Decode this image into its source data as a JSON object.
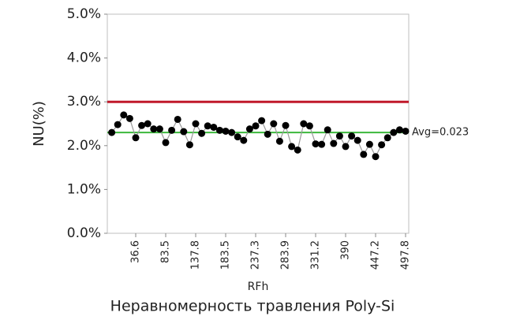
{
  "chart_data": {
    "type": "line",
    "caption": "Неравномерность травления Poly-Si",
    "x_label": "RFh",
    "y_label": "NU(%)",
    "categories": [
      null,
      null,
      null,
      null,
      "36.6",
      null,
      null,
      null,
      null,
      "83.5",
      null,
      null,
      null,
      null,
      "137.8",
      null,
      null,
      null,
      null,
      "183.5",
      null,
      null,
      null,
      null,
      "237.3",
      null,
      null,
      null,
      null,
      "283.9",
      null,
      null,
      null,
      null,
      "331.2",
      null,
      null,
      null,
      null,
      "390",
      null,
      null,
      null,
      null,
      "447.2",
      null,
      null,
      null,
      null,
      "497.8"
    ],
    "series": [
      {
        "name": "NU",
        "color": "#000000",
        "line_color": "#9a9a9a",
        "values": [
          2.3,
          2.48,
          2.7,
          2.62,
          2.18,
          2.46,
          2.5,
          2.38,
          2.38,
          2.07,
          2.35,
          2.6,
          2.32,
          2.02,
          2.5,
          2.28,
          2.45,
          2.42,
          2.35,
          2.33,
          2.3,
          2.2,
          2.12,
          2.38,
          2.45,
          2.57,
          2.26,
          2.5,
          2.1,
          2.46,
          1.98,
          1.9,
          2.5,
          2.45,
          2.04,
          2.03,
          2.36,
          2.05,
          2.22,
          1.98,
          2.22,
          2.12,
          1.8,
          2.03,
          1.75,
          2.02,
          2.18,
          2.3,
          2.36,
          2.33
        ]
      }
    ],
    "reference_lines": [
      {
        "value": 3.0,
        "color": "#c0182a"
      },
      {
        "value": 2.3,
        "label": "Avg=0.023",
        "color": "#3cb83c"
      }
    ],
    "ylim": [
      0,
      5
    ],
    "yticks": [
      {
        "value": 0,
        "label": "0.0%"
      },
      {
        "value": 1,
        "label": "1.0%"
      },
      {
        "value": 2,
        "label": "2.0%"
      },
      {
        "value": 3,
        "label": "3.0%"
      },
      {
        "value": 4,
        "label": "4.0%"
      },
      {
        "value": 5,
        "label": "5.0%"
      }
    ]
  }
}
